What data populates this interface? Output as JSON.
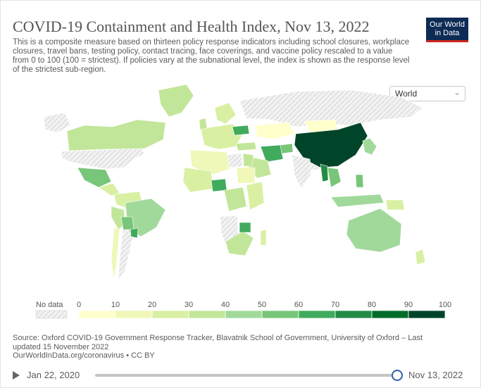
{
  "title": "COVID-19 Containment and Health Index, Nov 13, 2022",
  "subtitle": "This is a composite measure based on thirteen policy response indicators including school closures, workplace closures, travel bans, testing policy, contact tracing, face coverings, and vaccine policy rescaled to a value from 0 to 100 (100 = strictest). If policies vary at the subnational level, the index is shown as the response level of the strictest sub-region.",
  "logo": {
    "line1": "Our World",
    "line2": "in Data",
    "color": "#0d2b55",
    "accent": "#ce261e"
  },
  "region_select": {
    "value": "World",
    "icon": "chevron-down-icon"
  },
  "legend": {
    "no_data_label": "No data",
    "ticks": [
      "0",
      "10",
      "20",
      "30",
      "40",
      "50",
      "60",
      "70",
      "80",
      "90",
      "100"
    ],
    "colors": [
      "#ffffcc",
      "#f0f7b8",
      "#d9f0a3",
      "#c2e699",
      "#a1d99b",
      "#78c679",
      "#41ab5d",
      "#238b45",
      "#006d2c",
      "#004529"
    ]
  },
  "regions": [
    {
      "name": "China",
      "value": 90
    },
    {
      "name": "Myanmar",
      "value": 70
    },
    {
      "name": "Laos",
      "value": 60
    },
    {
      "name": "Iran",
      "value": 55
    },
    {
      "name": "Nigeria",
      "value": 50
    },
    {
      "name": "Zimbabwe",
      "value": 55
    },
    {
      "name": "Hong Kong",
      "value": 70
    },
    {
      "name": "Ukraine",
      "value": 50
    },
    {
      "name": "Afghanistan",
      "value": 40
    },
    {
      "name": "Paraguay",
      "value": 50
    },
    {
      "name": "Bolivia",
      "value": 45
    },
    {
      "name": "Mexico",
      "value": 40
    },
    {
      "name": "Kazakhstan",
      "value": 15
    },
    {
      "name": "Greenland",
      "value": 25
    },
    {
      "name": "Canada",
      "value": 25
    },
    {
      "name": "Brazil",
      "value": 35
    },
    {
      "name": "Australia",
      "value": 35
    },
    {
      "name": "Japan",
      "value": 40
    },
    {
      "name": "South Korea",
      "value": 35
    },
    {
      "name": "Indonesia",
      "value": 35
    },
    {
      "name": "Philippines",
      "value": 40
    },
    {
      "name": "Saudi Arabia",
      "value": 25
    },
    {
      "name": "Mongolia",
      "value": 10
    },
    {
      "name": "Algeria",
      "value": 15
    },
    {
      "name": "Sudan",
      "value": 15
    },
    {
      "name": "Egypt",
      "value": 25
    },
    {
      "name": "DR Congo",
      "value": 30
    },
    {
      "name": "Chile",
      "value": 15
    },
    {
      "name": "Madagascar",
      "value": 20
    }
  ],
  "source": {
    "line1": "Source: Oxford COVID-19 Government Response Tracker, Blavatnik School of Government, University of Oxford – Last updated 15 November 2022",
    "line2": "OurWorldInData.org/coronavirus • CC BY"
  },
  "timeline": {
    "start_label": "Jan 22, 2020",
    "end_label": "Nov 13, 2022",
    "position": 0.98
  }
}
